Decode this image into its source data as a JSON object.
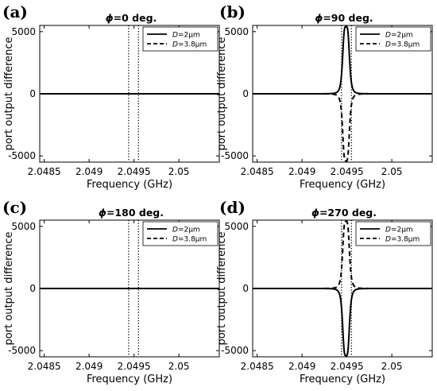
{
  "chart_data": [
    {
      "panel_label": "(a)",
      "title": "ϕ=0 deg.",
      "type": "line",
      "xlabel": "Frequency (GHz)",
      "ylabel": "port output difference",
      "xlim": [
        2.04845,
        2.05045
      ],
      "ylim": [
        -5500,
        5500
      ],
      "xticks": [
        2.0485,
        2.049,
        2.0495,
        2.05
      ],
      "xtick_labels": [
        "2.0485",
        "2.049",
        "2.0495",
        "2.05"
      ],
      "yticks": [
        -5000,
        0,
        5000
      ],
      "ytick_labels": [
        "-5000",
        "0",
        "5000"
      ],
      "vlines": [
        2.04944,
        2.04955
      ],
      "legend_position": "top-right",
      "series": [
        {
          "name": "D=2μm",
          "style": "solid",
          "resonance": {
            "center": 2.04949,
            "amplitude": 0,
            "width": 4e-05
          }
        },
        {
          "name": "D=3.8μm",
          "style": "dashed",
          "resonance": {
            "center": 2.04949,
            "amplitude": 0,
            "width": 4e-05
          }
        }
      ]
    },
    {
      "panel_label": "(b)",
      "title": "ϕ=90 deg.",
      "type": "line",
      "xlabel": "Frequency (GHz)",
      "ylabel": "port output difference",
      "xlim": [
        2.04845,
        2.05045
      ],
      "ylim": [
        -5500,
        5500
      ],
      "xticks": [
        2.0485,
        2.049,
        2.0495,
        2.05
      ],
      "xtick_labels": [
        "2.0485",
        "2.049",
        "2.0495",
        "2.05"
      ],
      "yticks": [
        -5000,
        0,
        5000
      ],
      "ytick_labels": [
        "-5000",
        "0",
        "5000"
      ],
      "vlines": [
        2.04944,
        2.04955
      ],
      "legend_position": "top-right",
      "series": [
        {
          "name": "D=2μm",
          "style": "solid",
          "resonance": {
            "center": 2.04949,
            "amplitude": 5400,
            "width": 4e-05
          }
        },
        {
          "name": "D=3.8μm",
          "style": "dashed",
          "resonance": {
            "center": 2.04949,
            "amplitude": -5400,
            "width": 4e-05
          }
        }
      ]
    },
    {
      "panel_label": "(c)",
      "title": "ϕ=180 deg.",
      "type": "line",
      "xlabel": "Frequency (GHz)",
      "ylabel": "port output difference",
      "xlim": [
        2.04845,
        2.05045
      ],
      "ylim": [
        -5500,
        5500
      ],
      "xticks": [
        2.0485,
        2.049,
        2.0495,
        2.05
      ],
      "xtick_labels": [
        "2.0485",
        "2.049",
        "2.0495",
        "2.05"
      ],
      "yticks": [
        -5000,
        0,
        5000
      ],
      "ytick_labels": [
        "-5000",
        "0",
        "5000"
      ],
      "vlines": [
        2.04944,
        2.04955
      ],
      "legend_position": "top-right",
      "series": [
        {
          "name": "D=2μm",
          "style": "solid",
          "resonance": {
            "center": 2.04949,
            "amplitude": 0,
            "width": 4e-05
          }
        },
        {
          "name": "D=3.8μm",
          "style": "dashed",
          "resonance": {
            "center": 2.04949,
            "amplitude": 0,
            "width": 4e-05
          }
        }
      ]
    },
    {
      "panel_label": "(d)",
      "title": "ϕ=270 deg.",
      "type": "line",
      "xlabel": "Frequency (GHz)",
      "ylabel": "port output difference",
      "xlim": [
        2.04845,
        2.05045
      ],
      "ylim": [
        -5500,
        5500
      ],
      "xticks": [
        2.0485,
        2.049,
        2.0495,
        2.05
      ],
      "xtick_labels": [
        "2.0485",
        "2.049",
        "2.0495",
        "2.05"
      ],
      "yticks": [
        -5000,
        0,
        5000
      ],
      "ytick_labels": [
        "-5000",
        "0",
        "5000"
      ],
      "vlines": [
        2.04944,
        2.04955
      ],
      "legend_position": "top-right",
      "series": [
        {
          "name": "D=2μm",
          "style": "solid",
          "resonance": {
            "center": 2.04949,
            "amplitude": -5400,
            "width": 4e-05
          }
        },
        {
          "name": "D=3.8μm",
          "style": "dashed",
          "resonance": {
            "center": 2.04949,
            "amplitude": 5400,
            "width": 4e-05
          }
        }
      ]
    }
  ]
}
